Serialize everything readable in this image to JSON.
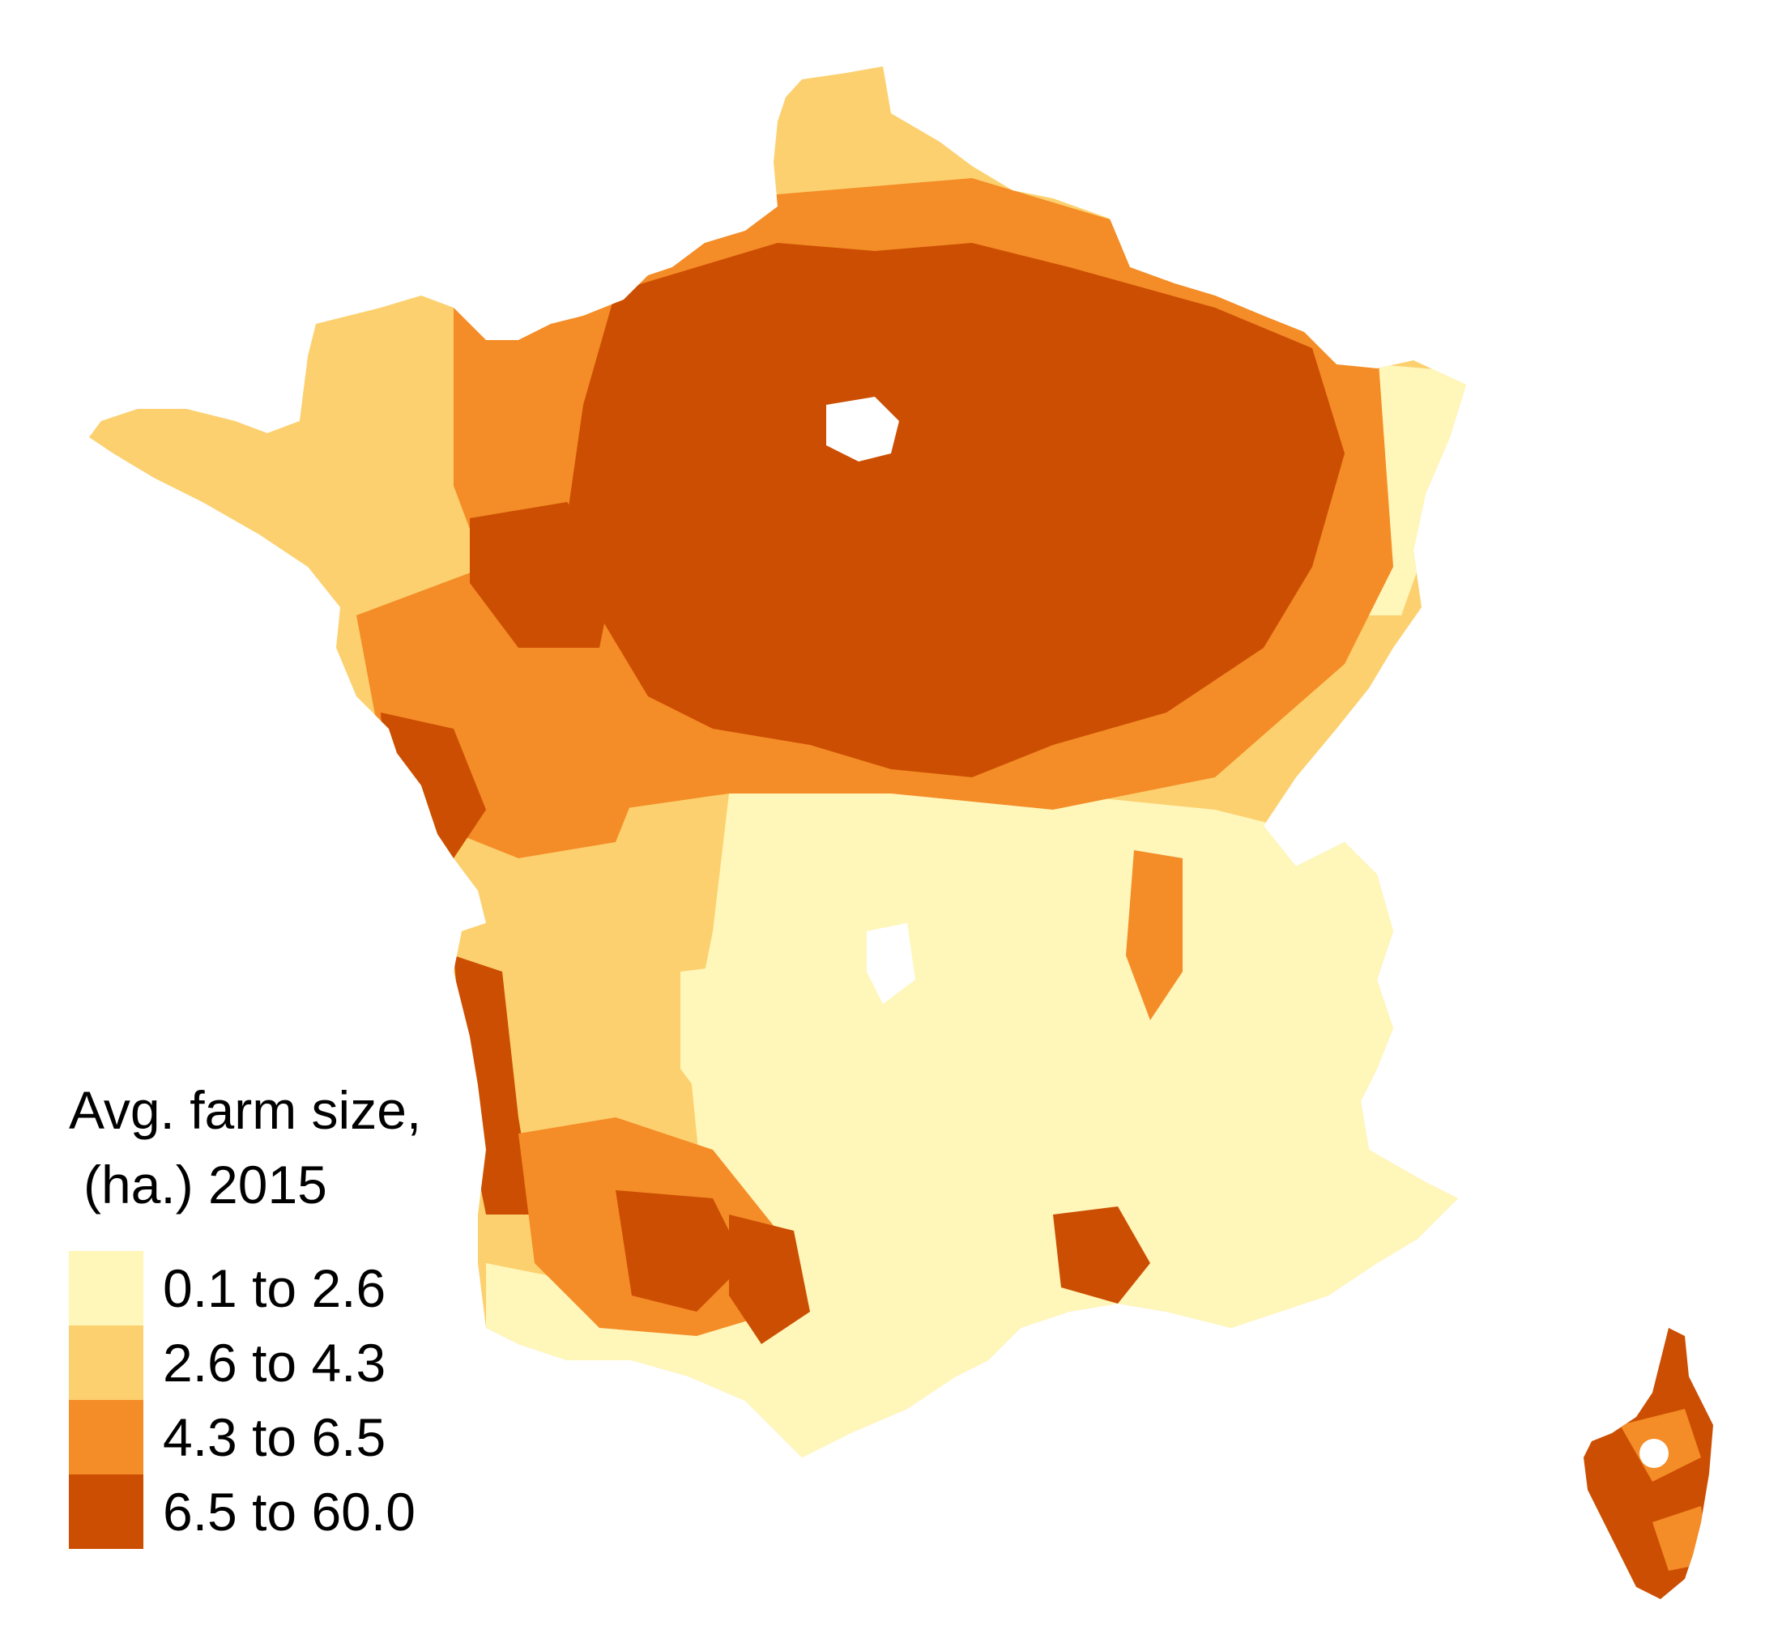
{
  "legend": {
    "title_line1": "Avg. farm size,",
    "title_line2": "(ha.) 2015",
    "items": [
      {
        "label": "0.1 to 2.6",
        "color": "#FFF6BA"
      },
      {
        "label": "2.6 to 4.3",
        "color": "#FCD06E"
      },
      {
        "label": "4.3 to 6.5",
        "color": "#F48C27"
      },
      {
        "label": "6.5 to 60.0",
        "color": "#CC4E02"
      }
    ]
  },
  "map": {
    "region": "France",
    "classes": {
      "c1": "#FFF6BA",
      "c2": "#FCD06E",
      "c3": "#F48C27",
      "c4": "#CC4E02",
      "nodata": "#FFFFFF"
    }
  }
}
